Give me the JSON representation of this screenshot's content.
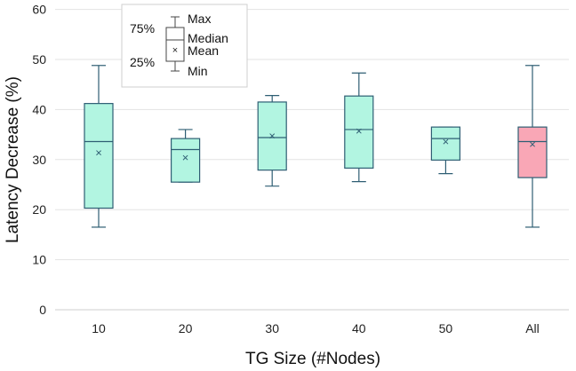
{
  "chart_data": {
    "type": "box",
    "xlabel": "TG Size (#Nodes)",
    "ylabel": "Latency Decrease (%)",
    "ylim": [
      0,
      60
    ],
    "yticks": [
      0,
      10,
      20,
      30,
      40,
      50,
      60
    ],
    "grid": true,
    "legend_position": "top-left",
    "legend": {
      "max": "Max",
      "q3": "75%",
      "median": "Median",
      "mean": "Mean",
      "q1": "25%",
      "min": "Min",
      "mean_marker": "×"
    },
    "categories": [
      "10",
      "20",
      "30",
      "40",
      "50",
      "All"
    ],
    "boxes": [
      {
        "category": "10",
        "min": 16.5,
        "q1": 20.3,
        "median": 33.6,
        "q3": 41.2,
        "max": 48.8,
        "mean": 31.3,
        "color": "#b2f5e1"
      },
      {
        "category": "20",
        "min": 25.5,
        "q1": 25.5,
        "median": 32.0,
        "q3": 34.2,
        "max": 36.0,
        "mean": 30.3,
        "color": "#b2f5e1"
      },
      {
        "category": "30",
        "min": 24.7,
        "q1": 27.9,
        "median": 34.4,
        "q3": 41.5,
        "max": 42.8,
        "mean": 34.7,
        "color": "#b2f5e1"
      },
      {
        "category": "40",
        "min": 25.6,
        "q1": 28.3,
        "median": 36.0,
        "q3": 42.7,
        "max": 47.3,
        "mean": 35.6,
        "color": "#b2f5e1"
      },
      {
        "category": "50",
        "min": 27.2,
        "q1": 29.9,
        "median": 34.2,
        "q3": 36.5,
        "max": 36.5,
        "mean": 33.5,
        "color": "#b2f5e1"
      },
      {
        "category": "All",
        "min": 16.5,
        "q1": 26.4,
        "median": 33.6,
        "q3": 36.5,
        "max": 48.8,
        "mean": 33.0,
        "color": "#f9a7b6"
      }
    ],
    "stroke_color": "#2e5e73"
  }
}
